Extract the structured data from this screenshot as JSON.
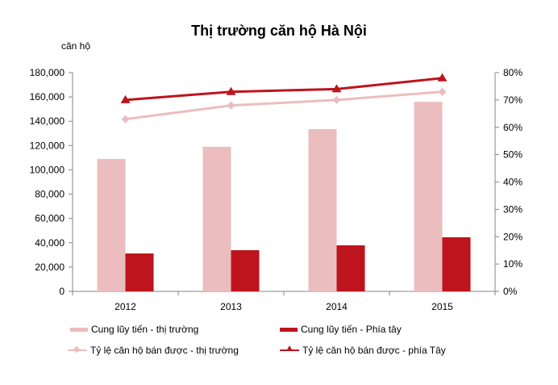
{
  "chart_data": {
    "type": "bar",
    "title": "Thị trường căn hộ Hà Nội",
    "ylabel": "căn hộ",
    "categories": [
      "2012",
      "2013",
      "2014",
      "2015"
    ],
    "ylim": [
      0,
      180000
    ],
    "y2lim": [
      0,
      80
    ],
    "yticks": [
      "0",
      "20,000",
      "40,000",
      "60,000",
      "80,000",
      "100,000",
      "120,000",
      "140,000",
      "160,000",
      "180,000"
    ],
    "y2ticks": [
      "0%",
      "10%",
      "20%",
      "30%",
      "40%",
      "50%",
      "60%",
      "70%",
      "80%"
    ],
    "series": [
      {
        "name": "Cung lũy tiến - thị trường",
        "type": "bar",
        "axis": "left",
        "color": "#ebbdbf",
        "values": [
          109000,
          119000,
          133500,
          156000
        ]
      },
      {
        "name": "Cung lũy tiến - Phía tây",
        "type": "bar",
        "axis": "left",
        "color": "#be141d",
        "values": [
          31200,
          33900,
          37900,
          44500
        ]
      },
      {
        "name": "Tỷ lệ căn hộ bán được - thị trường",
        "type": "line",
        "axis": "right",
        "marker": "diamond",
        "color": "#ebbdbf",
        "values": [
          63,
          68,
          70,
          73
        ]
      },
      {
        "name": "Tỷ lệ căn hộ bán được - phía Tây",
        "type": "line",
        "axis": "right",
        "marker": "triangle",
        "color": "#be141d",
        "values": [
          70,
          73,
          74,
          78
        ]
      }
    ],
    "legend": "bottom"
  }
}
